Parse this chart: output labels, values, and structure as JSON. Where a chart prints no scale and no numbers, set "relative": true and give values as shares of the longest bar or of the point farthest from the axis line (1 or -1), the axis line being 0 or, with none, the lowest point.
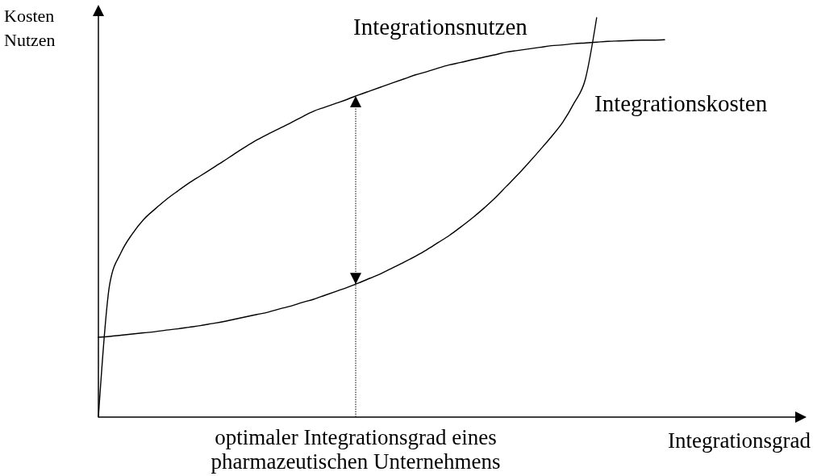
{
  "chart_data": {
    "type": "line",
    "relative": true,
    "xlabel": "Integrationsgrad",
    "ylabel": "Kosten\nNutzen",
    "annotations": [
      "optimaler Integrationsgrad eines pharmazeutischen Unternehmens"
    ],
    "categories": [
      null,
      null,
      null,
      null,
      null,
      null,
      null,
      null,
      null,
      null,
      null,
      null,
      null,
      null,
      null,
      null,
      null,
      null,
      null,
      null,
      null,
      null,
      null,
      null,
      null,
      null,
      null,
      null,
      null,
      null,
      null,
      null,
      null,
      null,
      null,
      null,
      null,
      null,
      null,
      null,
      null,
      null,
      null,
      null,
      null,
      null,
      null,
      null,
      null,
      null,
      null
    ],
    "series": [
      {
        "name": "Integrationsnutzen",
        "color": "#000000",
        "values": [
          0,
          0.333,
          0.412,
          0.459,
          0.495,
          0.521,
          0.545,
          0.566,
          0.586,
          0.604,
          0.622,
          0.64,
          0.659,
          0.677,
          0.694,
          0.709,
          0.723,
          0.737,
          0.752,
          0.766,
          0.776,
          0.786,
          0.796,
          0.807,
          0.817,
          0.827,
          0.837,
          0.847,
          0.857,
          0.865,
          0.874,
          0.882,
          0.888,
          0.895,
          0.901,
          0.907,
          0.914,
          0.918,
          0.922,
          0.926,
          0.93,
          0.932,
          0.935,
          0.937,
          0.939,
          0.941,
          0.942,
          0.943,
          0.944,
          0.944,
          0.945
        ]
      },
      {
        "name": "Integrationskosten",
        "color": "#000000",
        "values": [
          0.2,
          0.202,
          0.205,
          0.208,
          0.211,
          0.214,
          0.218,
          0.221,
          0.225,
          0.229,
          0.234,
          0.239,
          0.245,
          0.251,
          0.257,
          0.263,
          0.271,
          0.278,
          0.287,
          0.295,
          0.305,
          0.315,
          0.325,
          0.336,
          0.348,
          0.36,
          0.374,
          0.388,
          0.403,
          0.419,
          0.437,
          0.455,
          0.476,
          0.498,
          0.522,
          0.548,
          0.577,
          0.606,
          0.637,
          0.669,
          0.702,
          0.738,
          0.786,
          0.846,
          1,
          null,
          null,
          null,
          null,
          null,
          null
        ]
      }
    ]
  }
}
